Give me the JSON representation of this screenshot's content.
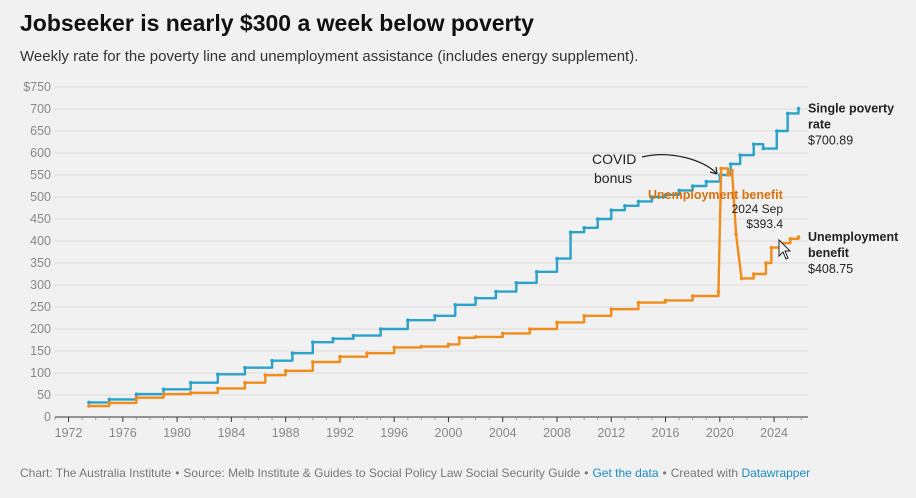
{
  "title": "Jobseeker is nearly $300 a week below poverty",
  "subtitle": "Weekly rate for the poverty line and unemployment assistance (includes energy supplement).",
  "footer": {
    "chart_credit": "Chart: The Australia Institute",
    "source": "Source: Melb Institute & Guides to Social Policy Law Social Security Guide",
    "get_data": "Get the data",
    "created_with": "Created with",
    "tool": "Datawrapper"
  },
  "chart_data": {
    "type": "line",
    "xlim": [
      1971,
      2026.5
    ],
    "ylim": [
      0,
      750
    ],
    "x_ticks": [
      1972,
      1976,
      1980,
      1984,
      1988,
      1992,
      1996,
      2000,
      2004,
      2008,
      2012,
      2016,
      2020,
      2024
    ],
    "y_ticks": [
      {
        "value": 0,
        "label": "0"
      },
      {
        "value": 50,
        "label": "50"
      },
      {
        "value": 100,
        "label": "100"
      },
      {
        "value": 150,
        "label": "150"
      },
      {
        "value": 200,
        "label": "200"
      },
      {
        "value": 250,
        "label": "250"
      },
      {
        "value": 300,
        "label": "300"
      },
      {
        "value": 350,
        "label": "350"
      },
      {
        "value": 400,
        "label": "400"
      },
      {
        "value": 450,
        "label": "450"
      },
      {
        "value": 500,
        "label": "500"
      },
      {
        "value": 550,
        "label": "550"
      },
      {
        "value": 600,
        "label": "600"
      },
      {
        "value": 650,
        "label": "650"
      },
      {
        "value": 700,
        "label": "700"
      },
      {
        "value": 750,
        "label": "$750"
      }
    ],
    "grid": true,
    "series": [
      {
        "name": "Single poverty rate",
        "label_lines": [
          "Single poverty",
          "rate"
        ],
        "end_value_label": "$700.89",
        "color": "#2aa2c9",
        "points": [
          [
            1973.5,
            33
          ],
          [
            1975,
            40
          ],
          [
            1977,
            52
          ],
          [
            1979,
            63
          ],
          [
            1981,
            78
          ],
          [
            1983,
            97
          ],
          [
            1985,
            112
          ],
          [
            1987,
            128
          ],
          [
            1988.5,
            145
          ],
          [
            1990,
            170
          ],
          [
            1991.5,
            178
          ],
          [
            1993,
            185
          ],
          [
            1995,
            200
          ],
          [
            1997,
            220
          ],
          [
            1999,
            230
          ],
          [
            2000.5,
            255
          ],
          [
            2002,
            270
          ],
          [
            2003.5,
            285
          ],
          [
            2005,
            305
          ],
          [
            2006.5,
            330
          ],
          [
            2008,
            360
          ],
          [
            2009,
            420
          ],
          [
            2010,
            430
          ],
          [
            2011,
            450
          ],
          [
            2012,
            470
          ],
          [
            2013,
            480
          ],
          [
            2014,
            490
          ],
          [
            2015,
            500
          ],
          [
            2016,
            505
          ],
          [
            2017,
            515
          ],
          [
            2018,
            525
          ],
          [
            2019,
            535
          ],
          [
            2020,
            550
          ],
          [
            2020.8,
            575
          ],
          [
            2021.5,
            595
          ],
          [
            2022.5,
            620
          ],
          [
            2023.2,
            610
          ],
          [
            2024.2,
            650
          ],
          [
            2025,
            690
          ],
          [
            2025.8,
            701
          ]
        ]
      },
      {
        "name": "Unemployment benefit",
        "label_lines": [
          "Unemployment",
          "benefit"
        ],
        "end_value_label": "$408.75",
        "color": "#f08c1b",
        "points": [
          [
            1973.5,
            25
          ],
          [
            1975,
            32
          ],
          [
            1977,
            44
          ],
          [
            1979,
            52
          ],
          [
            1981,
            55
          ],
          [
            1983,
            65
          ],
          [
            1985,
            78
          ],
          [
            1986.5,
            95
          ],
          [
            1988,
            105
          ],
          [
            1990,
            125
          ],
          [
            1992,
            137
          ],
          [
            1994,
            145
          ],
          [
            1996,
            158
          ],
          [
            1998,
            160
          ],
          [
            2000,
            165
          ],
          [
            2000.8,
            180
          ],
          [
            2002,
            182
          ],
          [
            2004,
            190
          ],
          [
            2006,
            200
          ],
          [
            2008,
            215
          ],
          [
            2010,
            230
          ],
          [
            2012,
            245
          ],
          [
            2014,
            260
          ],
          [
            2016,
            265
          ],
          [
            2018,
            275
          ],
          [
            2019.9,
            285
          ],
          [
            2020.1,
            565
          ],
          [
            2020.6,
            550
          ],
          [
            2020.9,
            560
          ],
          [
            2021.2,
            415
          ],
          [
            2021.6,
            315
          ],
          [
            2022.5,
            325
          ],
          [
            2023.4,
            350
          ],
          [
            2023.8,
            385
          ],
          [
            2024.5,
            395
          ],
          [
            2025.2,
            405
          ],
          [
            2025.8,
            409
          ]
        ]
      }
    ],
    "annotations": [
      {
        "text_lines": [
          "COVID",
          "bonus"
        ],
        "x": 2020.6,
        "y": 560
      },
      {
        "text": "Unemployment benefit",
        "x": 2020.1,
        "y": 565
      },
      {
        "text_lines": [
          "2024 Sep",
          "$393.4"
        ],
        "x": 2024.7,
        "y": 393.4
      }
    ]
  }
}
